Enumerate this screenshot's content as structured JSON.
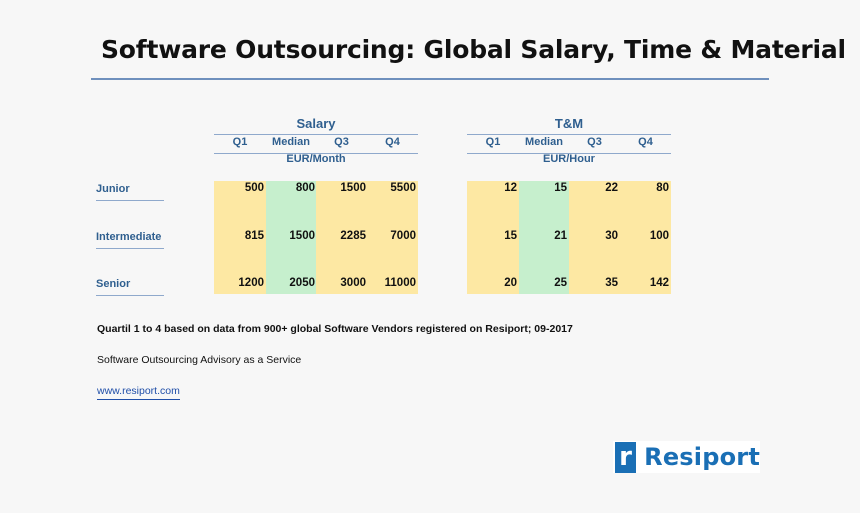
{
  "title": "Software Outsourcing: Global Salary, Time & Material",
  "salary": {
    "heading": "Salary",
    "columns": [
      "Q1",
      "Median",
      "Q3",
      "Q4"
    ],
    "unit": "EUR/Month",
    "rows": [
      [
        "500",
        "800",
        "1500",
        "5500"
      ],
      [
        "815",
        "1500",
        "2285",
        "7000"
      ],
      [
        "1200",
        "2050",
        "3000",
        "11000"
      ]
    ]
  },
  "tm": {
    "heading": "T&M",
    "columns": [
      "Q1",
      "Median",
      "Q3",
      "Q4"
    ],
    "unit": "EUR/Hour",
    "rows": [
      [
        "12",
        "15",
        "22",
        "80"
      ],
      [
        "15",
        "21",
        "30",
        "100"
      ],
      [
        "20",
        "25",
        "35",
        "142"
      ]
    ]
  },
  "row_labels": [
    "Junior",
    "Intermediate",
    "Senior"
  ],
  "notes": {
    "quartile": "Quartil 1 to 4 based on data from 900+ global Software Vendors registered on Resiport; 09-2017",
    "advisory": "Software Outsourcing Advisory as a Service",
    "link": "www.resiport.com"
  },
  "logo": {
    "mark": "r",
    "text": "Resiport"
  },
  "colors": {
    "accent": "#2f5f8f",
    "rule": "#6f90bd",
    "quartile_fill": "#fde8a3",
    "median_fill": "#c6efcd",
    "brand": "#1a6fb5"
  }
}
